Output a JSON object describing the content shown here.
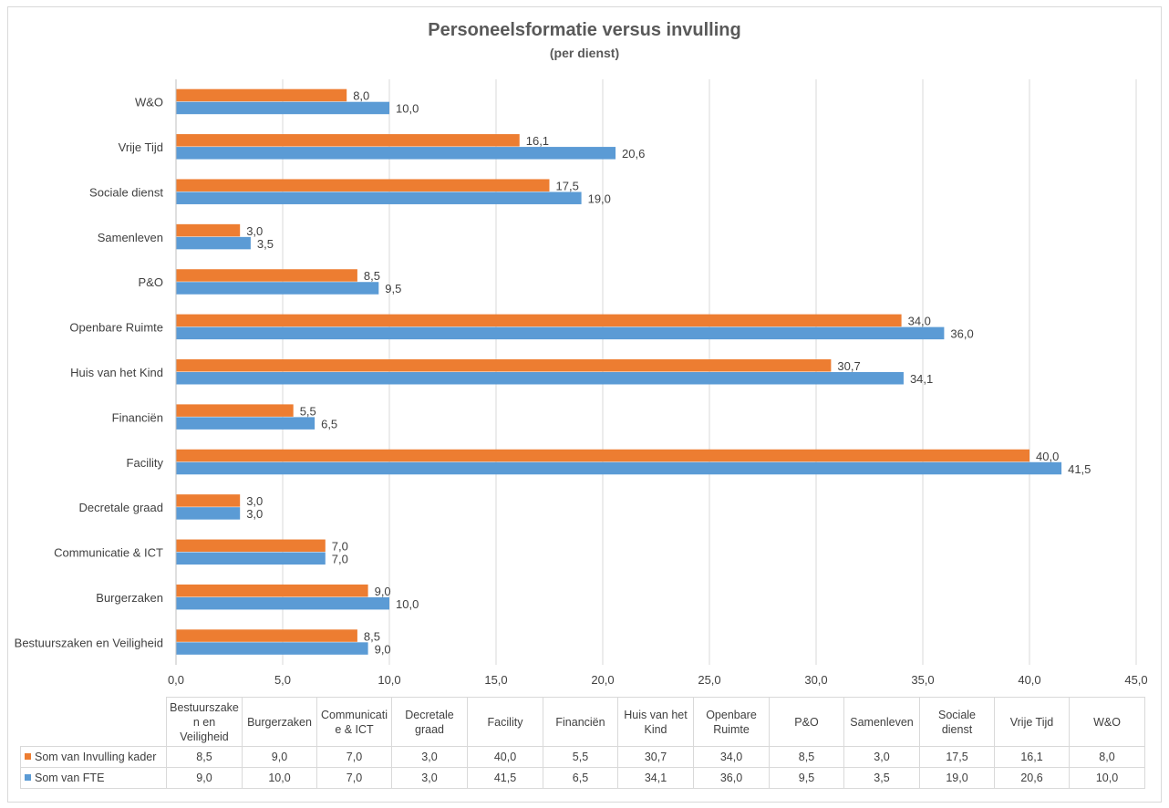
{
  "chart_data": {
    "type": "bar",
    "orientation": "horizontal",
    "title": "Personeelsformatie versus invulling",
    "subtitle": "(per dienst)",
    "categories": [
      "Bestuurszaken en Veiligheid",
      "Burgerzaken",
      "Communicatie & ICT",
      "Decretale graad",
      "Facility",
      "Financiën",
      "Huis van het Kind",
      "Openbare Ruimte",
      "P&O",
      "Samenleven",
      "Sociale dienst",
      "Vrije Tijd",
      "W&O"
    ],
    "table_categories": [
      "Bestuurszake n en Veiligheid",
      "Burgerzaken",
      "Communicati e & ICT",
      "Decretale graad",
      "Facility",
      "Financiën",
      "Huis van het Kind",
      "Openbare Ruimte",
      "P&O",
      "Samenleven",
      "Sociale dienst",
      "Vrije Tijd",
      "W&O"
    ],
    "series": [
      {
        "name": "Som van Invulling kader",
        "color": "#ed7d31",
        "values": [
          8.5,
          9.0,
          7.0,
          3.0,
          40.0,
          5.5,
          30.7,
          34.0,
          8.5,
          3.0,
          17.5,
          16.1,
          8.0
        ],
        "labels": [
          "8,5",
          "9,0",
          "7,0",
          "3,0",
          "40,0",
          "5,5",
          "30,7",
          "34,0",
          "8,5",
          "3,0",
          "17,5",
          "16,1",
          "8,0"
        ]
      },
      {
        "name": "Som van FTE",
        "color": "#5b9bd5",
        "values": [
          9.0,
          10.0,
          7.0,
          3.0,
          41.5,
          6.5,
          34.1,
          36.0,
          9.5,
          3.5,
          19.0,
          20.6,
          10.0
        ],
        "labels": [
          "9,0",
          "10,0",
          "7,0",
          "3,0",
          "41,5",
          "6,5",
          "34,1",
          "36,0",
          "9,5",
          "3,5",
          "19,0",
          "20,6",
          "10,0"
        ]
      }
    ],
    "xlim": [
      0,
      45
    ],
    "xticks": [
      0,
      5,
      10,
      15,
      20,
      25,
      30,
      35,
      40,
      45
    ],
    "xtick_labels": [
      "0,0",
      "5,0",
      "10,0",
      "15,0",
      "20,0",
      "25,0",
      "30,0",
      "35,0",
      "40,0",
      "45,0"
    ],
    "grid": true,
    "legend": "data-table"
  }
}
